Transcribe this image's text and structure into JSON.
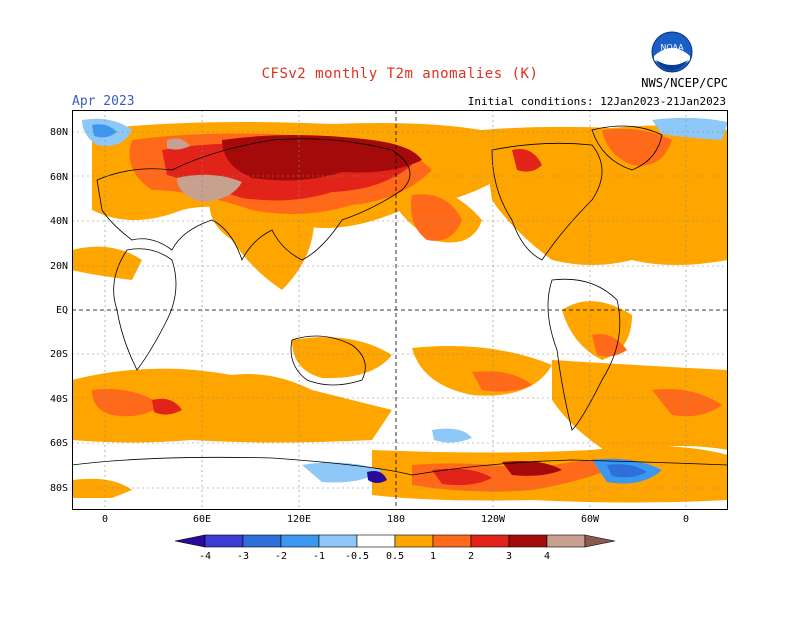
{
  "header": {
    "title": "CFSv2 monthly T2m anomalies (K)",
    "month": "Apr 2023",
    "initial_conditions": "Initial conditions: 12Jan2023-21Jan2023",
    "agency": "NWS/NCEP/CPC",
    "logo_text": "NOAA"
  },
  "axes": {
    "lat_labels": [
      "80N",
      "60N",
      "40N",
      "20N",
      "EQ",
      "20S",
      "40S",
      "60S",
      "80S"
    ],
    "lon_labels": [
      "0",
      "60E",
      "120E",
      "180",
      "120W",
      "60W",
      "0"
    ]
  },
  "legend": {
    "ticks": [
      "-4",
      "-3",
      "-2",
      "-1",
      "-0.5",
      "0.5",
      "1",
      "2",
      "3",
      "4"
    ],
    "colors": {
      "lt_-4": "#2a0a9a",
      "-4_-3": "#3b3bd6",
      "-3_-2": "#2f6fd9",
      "-2_-1": "#3b97f0",
      "-1_-0.5": "#8ec8f8",
      "neutral": "#ffffff",
      "0.5_1": "#ffa500",
      "1_2": "#ff6a1a",
      "2_3": "#e2231a",
      "3_4": "#a50a0a",
      "4_5": "#c8a090",
      "gt_5": "#8a5a50"
    }
  }
}
